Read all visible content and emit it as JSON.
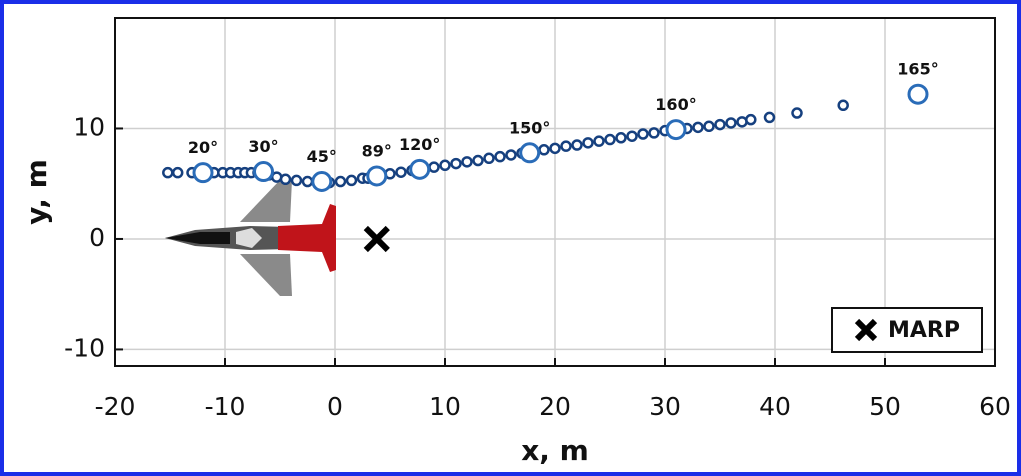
{
  "chart_data": {
    "type": "scatter",
    "xlabel": "x, m",
    "ylabel": "y, m",
    "xlim": [
      -20,
      60
    ],
    "ylim": [
      -11.5,
      20
    ],
    "xticks": [
      -20,
      -10,
      0,
      10,
      20,
      30,
      40,
      50,
      60
    ],
    "yticks": [
      -10,
      0,
      10
    ],
    "grid": true,
    "legend": "lower right",
    "series": [
      {
        "color": "#16407f",
        "marker": "circle",
        "x": [
          -15.2,
          -14.3,
          -13,
          -11,
          -10.2,
          -9.5,
          -8.8,
          -8.2,
          -7.6,
          -7,
          -6,
          -5.3,
          -4.5,
          -3.5,
          -2.5,
          -0.5,
          0.5,
          1.5,
          2.5,
          3,
          5,
          6,
          7,
          8,
          9,
          10,
          11,
          12,
          13,
          14,
          15,
          16,
          17,
          18,
          19,
          20,
          21,
          22,
          23,
          24,
          25,
          26,
          27,
          28,
          29,
          30,
          32,
          33,
          34,
          35,
          36,
          37,
          37.8,
          39.5,
          42,
          46.2
        ],
        "values": [
          6,
          6,
          6,
          6,
          6,
          6,
          6,
          6,
          6,
          6,
          5.8,
          5.6,
          5.4,
          5.3,
          5.2,
          5.1,
          5.2,
          5.3,
          5.5,
          5.5,
          5.9,
          6.04,
          6.2,
          6.36,
          6.5,
          6.67,
          6.82,
          6.98,
          7.1,
          7.3,
          7.45,
          7.6,
          7.76,
          7.9,
          8.07,
          8.2,
          8.4,
          8.5,
          8.7,
          8.85,
          9,
          9.16,
          9.3,
          9.5,
          9.6,
          9.8,
          10,
          10.1,
          10.2,
          10.35,
          10.5,
          10.6,
          10.8,
          11,
          11.4,
          12.1
        ]
      },
      {
        "color": "#2a6cb8",
        "marker": "big-circle",
        "x": [
          -12,
          -6.5,
          -1.2,
          3.8,
          7.7,
          17.7,
          31,
          53
        ],
        "values": [
          6,
          6.1,
          5.2,
          5.7,
          6.3,
          7.8,
          9.9,
          13.1
        ],
        "point_labels": [
          "20°",
          "30°",
          "45°",
          "89°",
          "120°",
          "150°",
          "160°",
          "165°"
        ]
      },
      {
        "name": "MARP",
        "color": "#000000",
        "marker": "x",
        "x": [
          3.8
        ],
        "values": [
          0
        ]
      }
    ]
  }
}
